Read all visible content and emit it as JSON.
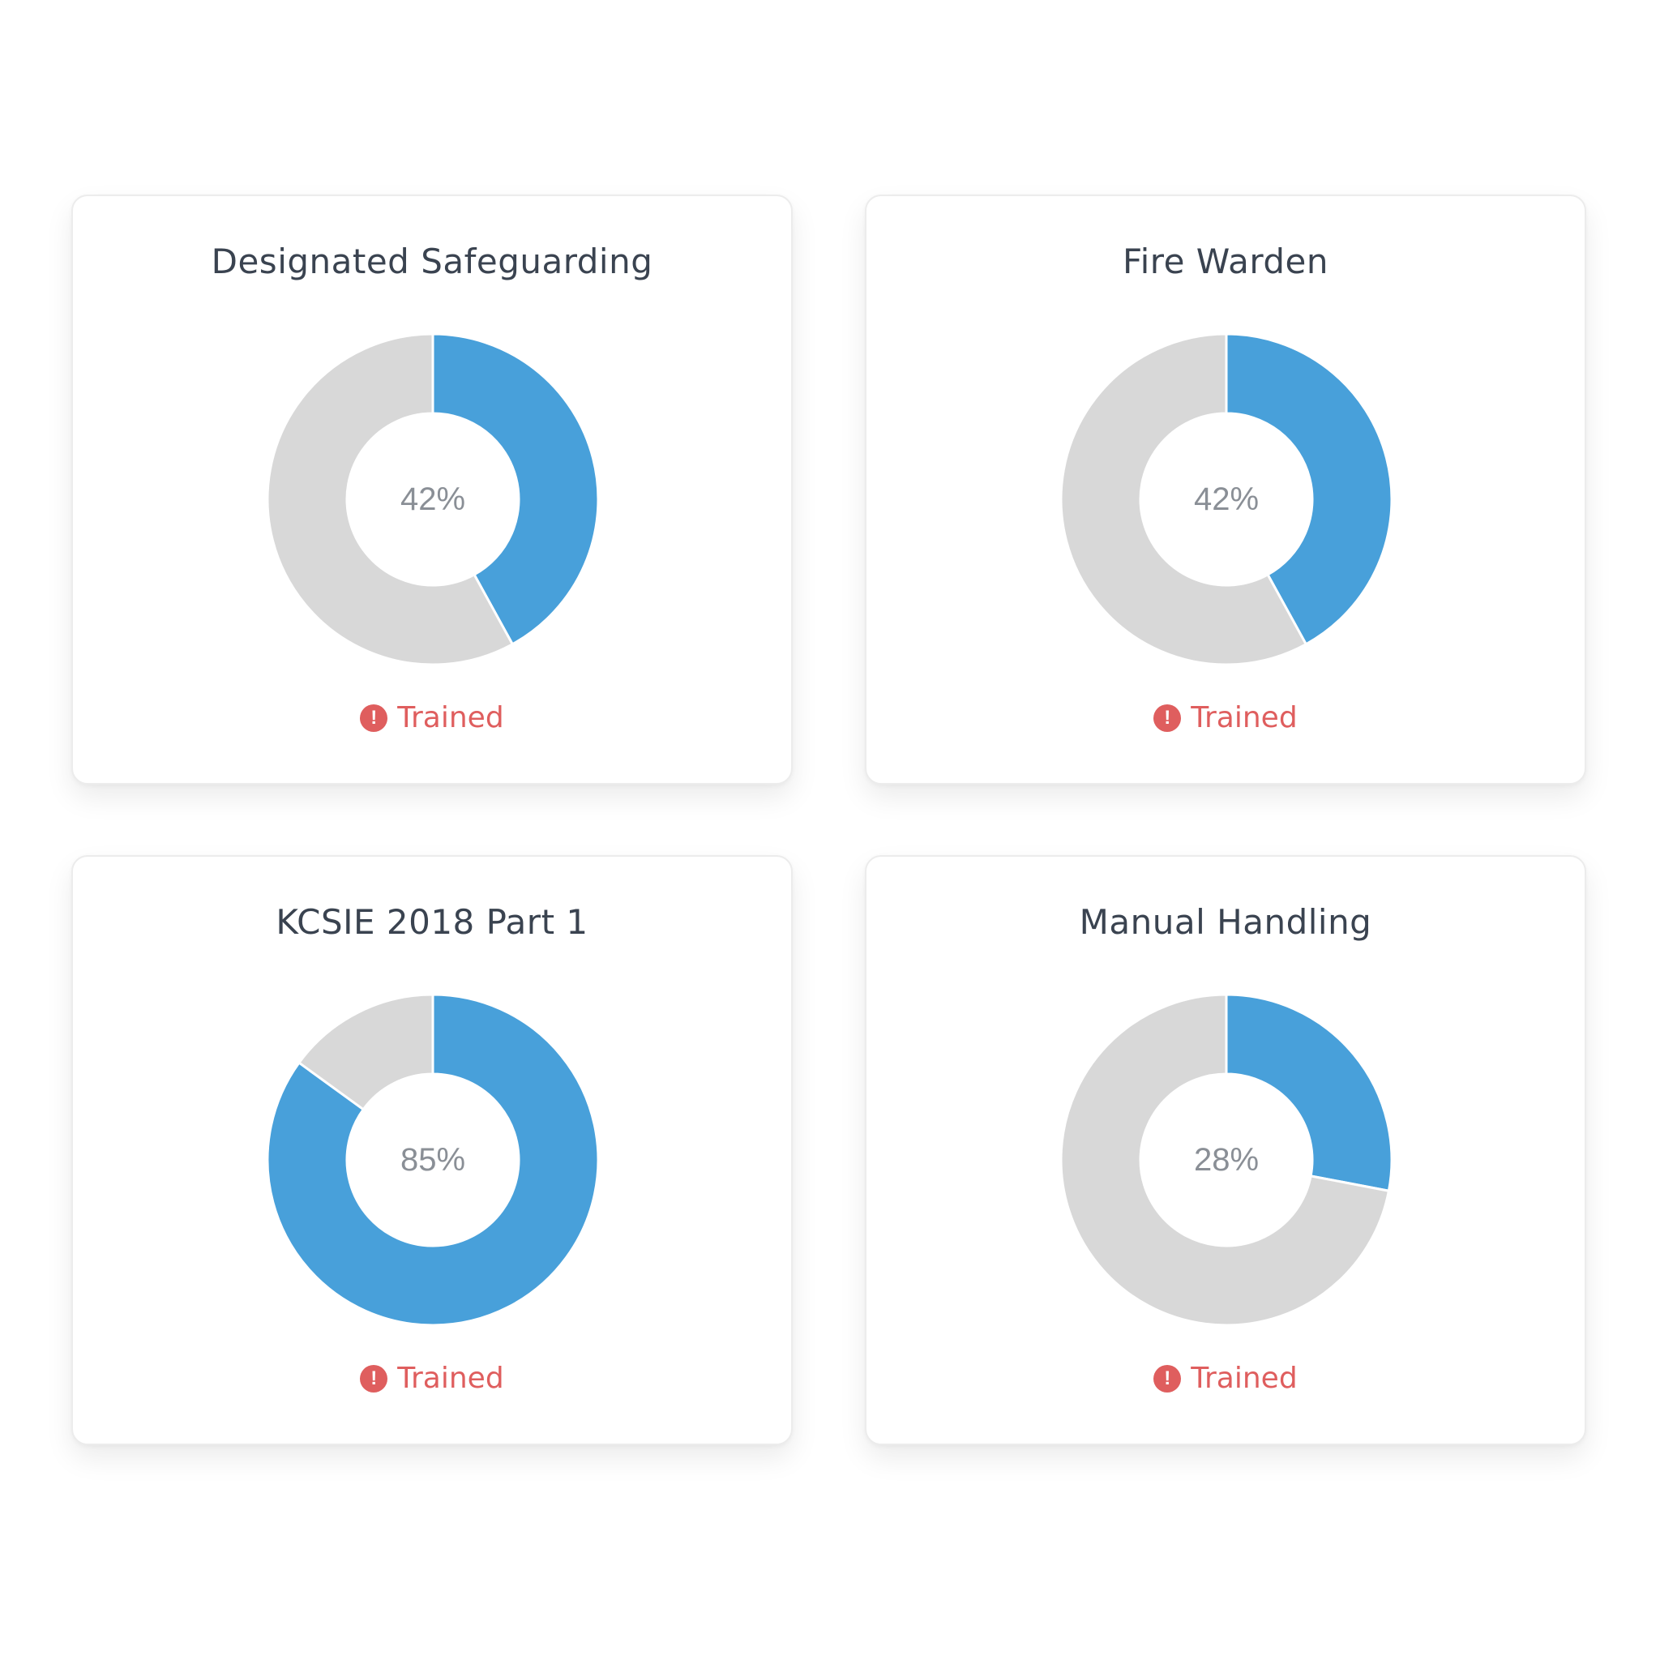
{
  "colors": {
    "trained_segment": "#48a0da",
    "untrained_segment": "#d8d8d8",
    "status_warning": "#df5e5e",
    "title_text": "#3a4350",
    "percent_text": "#8a8f96"
  },
  "status_icon": "exclamation-circle-icon",
  "cards": [
    {
      "title": "Designated Safeguarding",
      "percent_label": "42%",
      "status_label": "Trained"
    },
    {
      "title": "Fire Warden",
      "percent_label": "42%",
      "status_label": "Trained"
    },
    {
      "title": "KCSIE 2018 Part 1",
      "percent_label": "85%",
      "status_label": "Trained"
    },
    {
      "title": "Manual Handling",
      "percent_label": "28%",
      "status_label": "Trained"
    }
  ],
  "chart_data": [
    {
      "type": "pie",
      "title": "Designated Safeguarding",
      "values": [
        42,
        58
      ],
      "colors": [
        "#48a0da",
        "#d8d8d8"
      ]
    },
    {
      "type": "pie",
      "title": "Fire Warden",
      "values": [
        42,
        58
      ],
      "colors": [
        "#48a0da",
        "#d8d8d8"
      ]
    },
    {
      "type": "pie",
      "title": "KCSIE 2018 Part 1",
      "values": [
        85,
        15
      ],
      "colors": [
        "#48a0da",
        "#d8d8d8"
      ]
    },
    {
      "type": "pie",
      "title": "Manual Handling",
      "values": [
        28,
        72
      ],
      "colors": [
        "#48a0da",
        "#d8d8d8"
      ]
    }
  ]
}
